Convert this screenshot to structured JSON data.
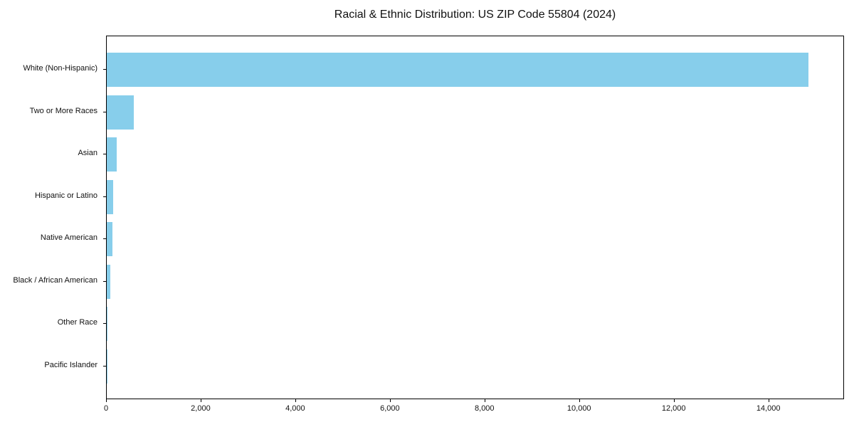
{
  "chart_data": {
    "type": "bar",
    "orientation": "horizontal",
    "title": "Racial & Ethnic Distribution: US ZIP Code 55804 (2024)",
    "categories": [
      "White (Non-Hispanic)",
      "Two or More Races",
      "Asian",
      "Hispanic or Latino",
      "Native American",
      "Black / African American",
      "Other Race",
      "Pacific Islander"
    ],
    "values": [
      14840,
      570,
      205,
      140,
      115,
      70,
      15,
      2
    ],
    "xlabel": "",
    "ylabel": "",
    "xlim": [
      0,
      15600
    ],
    "x_ticks": [
      0,
      2000,
      4000,
      6000,
      8000,
      10000,
      12000,
      14000
    ],
    "x_tick_labels": [
      "0",
      "2,000",
      "4,000",
      "6,000",
      "8,000",
      "10,000",
      "12,000",
      "14,000"
    ],
    "bar_color": "#87CEEB",
    "grid": false,
    "legend": "none"
  }
}
